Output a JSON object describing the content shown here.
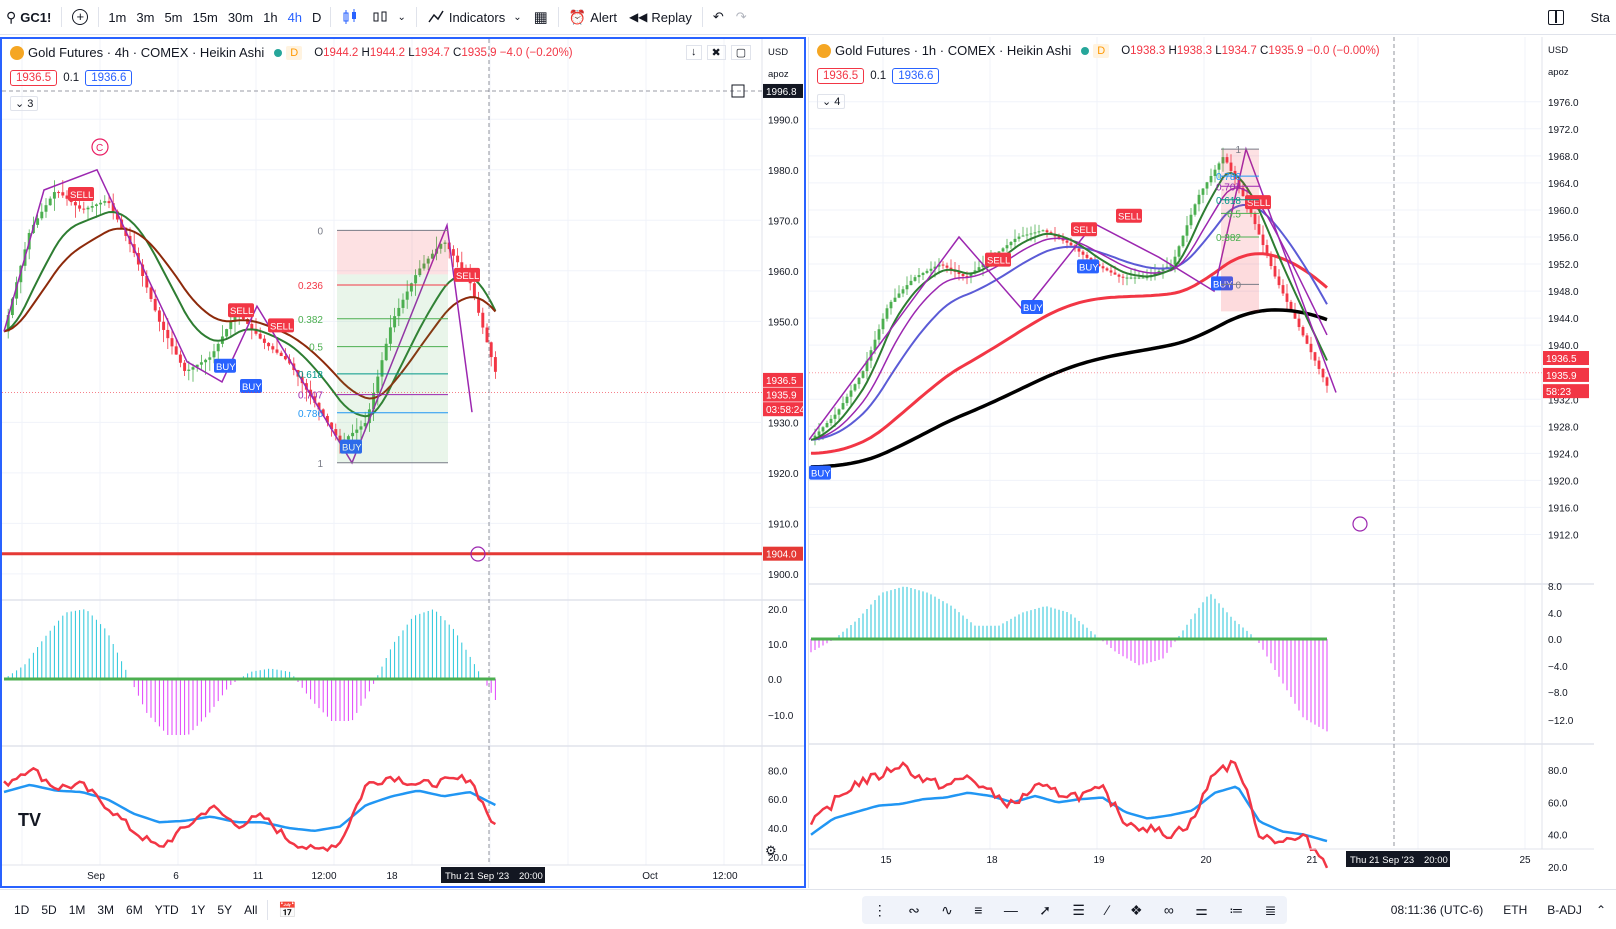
{
  "toolbar": {
    "symbol": "GC1!",
    "timeframes": [
      "1m",
      "3m",
      "5m",
      "15m",
      "30m",
      "1h",
      "4h",
      "D"
    ],
    "active_timeframe": "4h",
    "indicators_label": "Indicators",
    "alert_label": "Alert",
    "replay_label": "Replay",
    "right_label": "Sta"
  },
  "bottom": {
    "ranges": [
      "1D",
      "5D",
      "1M",
      "3M",
      "6M",
      "YTD",
      "1Y",
      "5Y",
      "All"
    ],
    "clock": "08:11:36 (UTC-6)",
    "session": "ETH",
    "adj": "B-ADJ"
  },
  "left_chart": {
    "title": "Gold Futures · 4h · COMEX · Heikin Ashi",
    "ohlc": {
      "o": "1944.2",
      "h": "1944.2",
      "l": "1934.7",
      "c": "1935.9",
      "chg": "−4.0 (−0.20%)"
    },
    "bid": "1936.5",
    "spread": "0.1",
    "ask": "1936.6",
    "collapse_count": "3",
    "currency": "USD",
    "scale_mode": "apoz",
    "price_ticks": [
      "1990.0",
      "1980.0",
      "1970.0",
      "1960.0",
      "1950.0",
      "1930.0",
      "1920.0",
      "1910.0",
      "1900.0"
    ],
    "crosshair_price": "1996.8",
    "last_bid_label": "1936.5",
    "last_price_label": "1935.9",
    "countdown": "03:58:24",
    "support_label": "1904.0",
    "fib_levels": [
      "0",
      "0.236",
      "0.382",
      "0.5",
      "0.618",
      "0.707",
      "0.786",
      "1"
    ],
    "signals": [
      "SELL",
      "SELL",
      "SELL",
      "SELL",
      "BUY",
      "BUY",
      "BUY"
    ],
    "macd_ticks": [
      "20.0",
      "10.0",
      "0.0",
      "−10.0"
    ],
    "rsi_ticks": [
      "80.0",
      "60.0",
      "40.0",
      "20.0"
    ],
    "time_labels": [
      "Sep",
      "6",
      "11",
      "12:00",
      "18",
      "Oct",
      "12:00"
    ],
    "crosshair_time": "Thu 21 Sep '23",
    "crosshair_hour": "20:00",
    "marker": "C"
  },
  "right_chart": {
    "title": "Gold Futures · 1h · COMEX · Heikin Ashi",
    "ohlc": {
      "o": "1938.3",
      "h": "1938.3",
      "l": "1934.7",
      "c": "1935.9",
      "chg": "−0.0 (−0.00%)"
    },
    "bid": "1936.5",
    "spread": "0.1",
    "ask": "1936.6",
    "collapse_count": "4",
    "currency": "USD",
    "scale_mode": "apoz",
    "price_ticks": [
      "1976.0",
      "1972.0",
      "1968.0",
      "1964.0",
      "1960.0",
      "1956.0",
      "1952.0",
      "1948.0",
      "1944.0",
      "1940.0",
      "1932.0",
      "1928.0",
      "1924.0",
      "1920.0",
      "1916.0",
      "1912.0"
    ],
    "last_bid_label": "1936.5",
    "last_price_label": "1935.9",
    "countdown": "58:23",
    "fib_levels": [
      "1",
      "0.786",
      "0.707",
      "0.618",
      "0.5",
      "0.382",
      "0"
    ],
    "signals": [
      "SELL",
      "SELL",
      "SELL",
      "SELL",
      "BUY",
      "BUY",
      "BUY",
      "BUY"
    ],
    "macd_ticks": [
      "8.0",
      "4.0",
      "0.0",
      "−4.0",
      "−8.0",
      "−12.0"
    ],
    "rsi_ticks": [
      "80.0",
      "60.0",
      "40.0",
      "20.0"
    ],
    "time_labels": [
      "15",
      "18",
      "19",
      "20",
      "21",
      "25"
    ],
    "crosshair_time": "Thu 21 Sep '23",
    "crosshair_hour": "20:00"
  },
  "colors": {
    "red": "#f23645",
    "blue": "#2962ff",
    "green": "#4caf50",
    "teal": "#26c6da",
    "pink": "#e040fb",
    "purple": "#9c27b0"
  }
}
